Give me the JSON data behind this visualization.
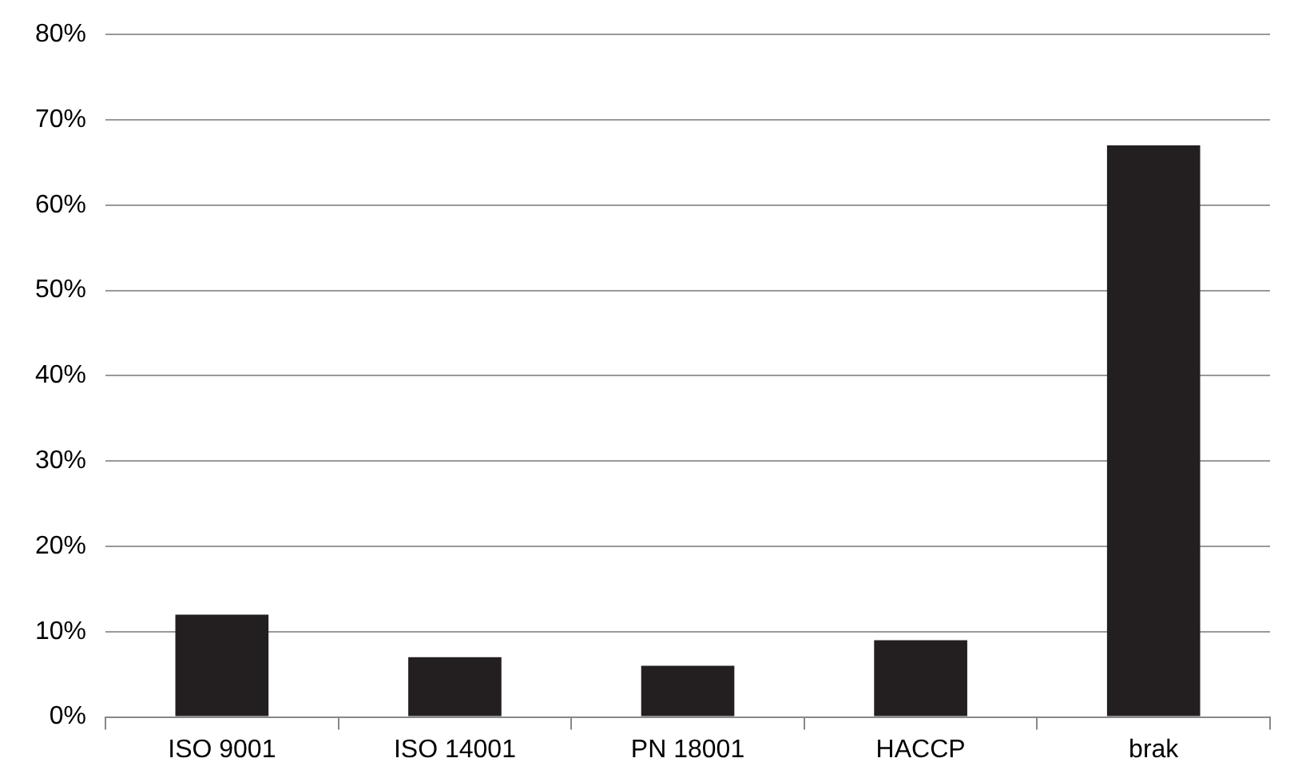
{
  "chart_data": {
    "type": "bar",
    "categories": [
      "ISO 9001",
      "ISO 14001",
      "PN 18001",
      "HACCP",
      "brak"
    ],
    "values": [
      12,
      7,
      6,
      9,
      67
    ],
    "color": "#231f20",
    "ylim": [
      0,
      80
    ],
    "yticks": [
      {
        "value": 0,
        "label": "0%"
      },
      {
        "value": 10,
        "label": "10%"
      },
      {
        "value": 20,
        "label": "20%"
      },
      {
        "value": 30,
        "label": "30%"
      },
      {
        "value": 40,
        "label": "40%"
      },
      {
        "value": 50,
        "label": "50%"
      },
      {
        "value": 60,
        "label": "60%"
      },
      {
        "value": 70,
        "label": "70%"
      },
      {
        "value": 80,
        "label": "80%"
      }
    ],
    "grid": "y",
    "legend": false
  }
}
